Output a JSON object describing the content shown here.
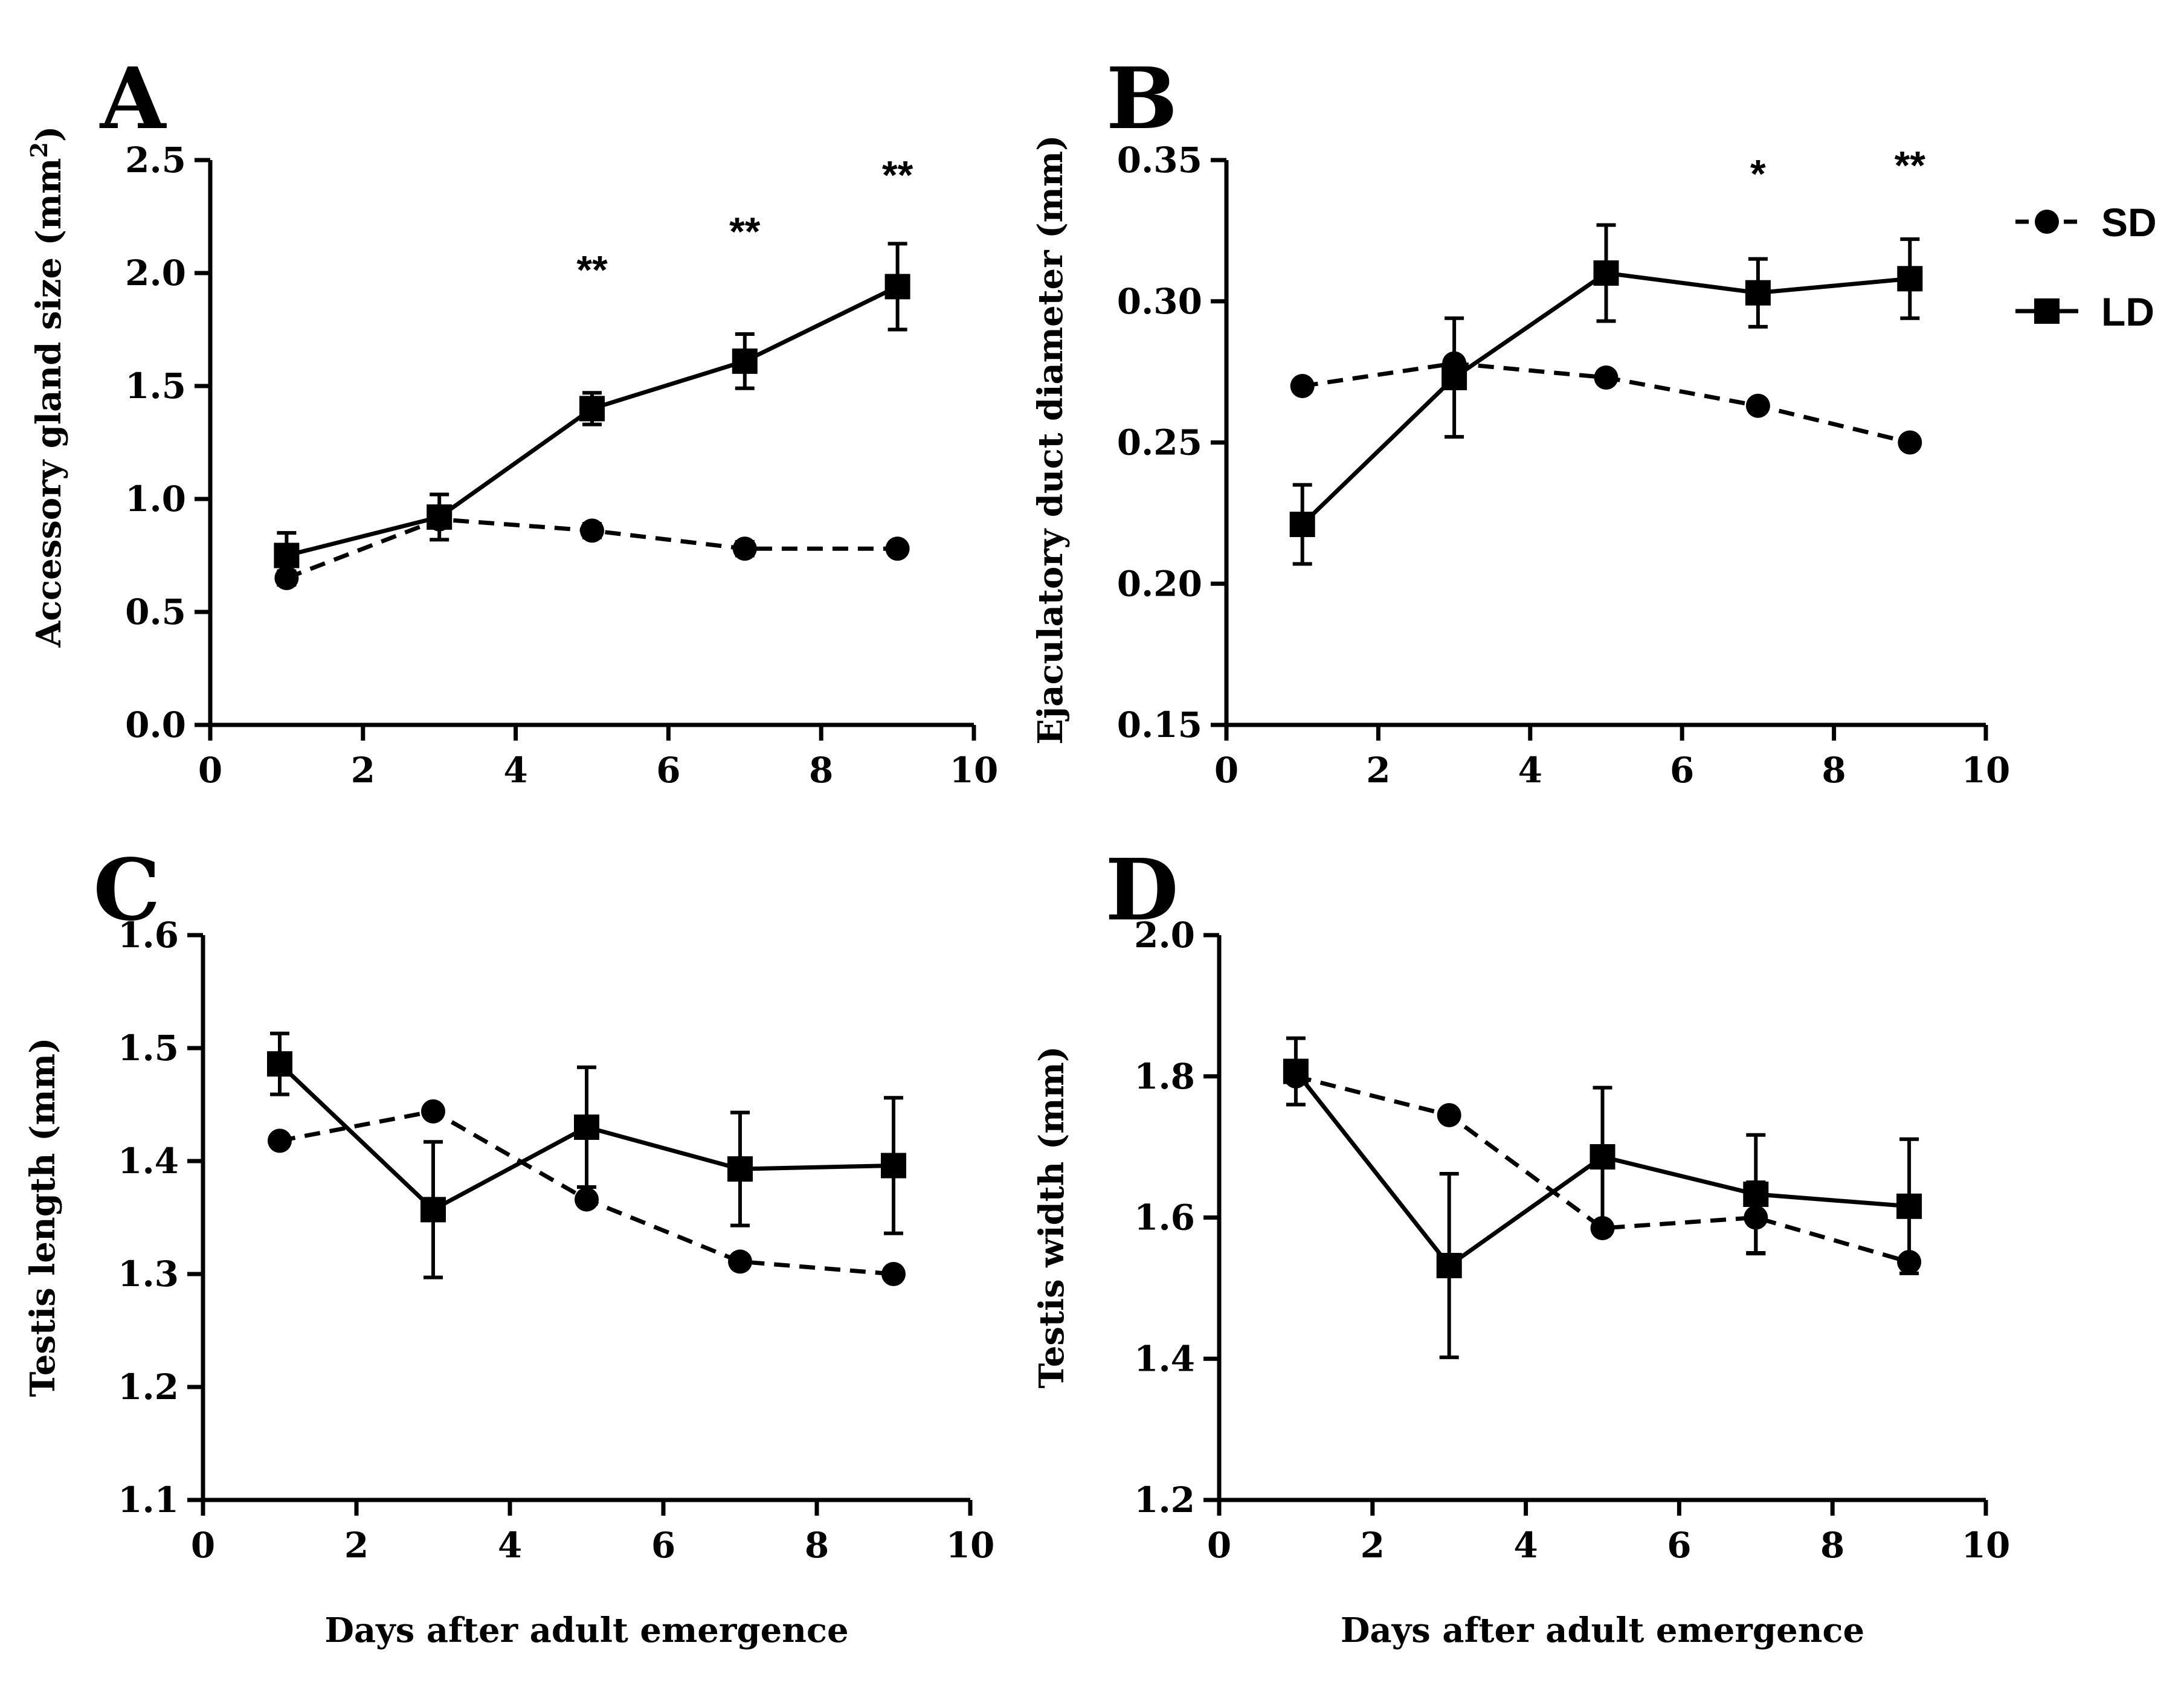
{
  "legend": {
    "items": [
      {
        "label": "SD",
        "marker": "circle",
        "dash": "dashed"
      },
      {
        "label": "LD",
        "marker": "square",
        "dash": "solid"
      }
    ],
    "placement": "right of panel B"
  },
  "x_axis_title": "Days after adult emergence",
  "chart_data": [
    {
      "panel": "A",
      "type": "line",
      "x": [
        1,
        3,
        5,
        7,
        9
      ],
      "xlim": [
        0,
        10
      ],
      "xticks": [
        "0",
        "2",
        "4",
        "6",
        "8",
        "10"
      ],
      "ylim": [
        0,
        2.5
      ],
      "yticks": [
        "0.0",
        "0.5",
        "1.0",
        "1.5",
        "2.0",
        "2.5"
      ],
      "ylabel": "Accessory gland size (mm",
      "ylabel_sup": "2",
      "ylabel_suffix": ")",
      "xlabel": "",
      "series": [
        {
          "name": "SD",
          "values": [
            0.65,
            0.91,
            0.86,
            0.78,
            0.78
          ],
          "err": [
            0.03,
            0.03,
            0.03,
            0.03,
            0.02
          ]
        },
        {
          "name": "LD",
          "values": [
            0.75,
            0.92,
            1.4,
            1.61,
            1.94
          ],
          "err": [
            0.1,
            0.1,
            0.07,
            0.12,
            0.19
          ]
        }
      ],
      "annotations": [
        {
          "x": 5,
          "text": "**",
          "value": 2.0
        },
        {
          "x": 7,
          "text": "**",
          "value": 2.17
        },
        {
          "x": 9,
          "text": "**",
          "value": 2.42
        }
      ]
    },
    {
      "panel": "B",
      "type": "line",
      "x": [
        1,
        3,
        5,
        7,
        9
      ],
      "xlim": [
        0,
        10
      ],
      "xticks": [
        "0",
        "2",
        "4",
        "6",
        "8",
        "10"
      ],
      "ylim": [
        0.15,
        0.35
      ],
      "yticks": [
        "0.15",
        "0.20",
        "0.25",
        "0.30",
        "0.35"
      ],
      "ylabel": "Ejaculatory duct diameter  (mm)",
      "xlabel": "",
      "series": [
        {
          "name": "SD",
          "values": [
            0.27,
            0.278,
            0.273,
            0.263,
            0.25
          ],
          "err": [
            0.002,
            0.002,
            0.002,
            0.002,
            0.002
          ]
        },
        {
          "name": "LD",
          "values": [
            0.221,
            0.273,
            0.31,
            0.303,
            0.308
          ],
          "err": [
            0.014,
            0.021,
            0.017,
            0.012,
            0.014
          ]
        }
      ],
      "annotations": [
        {
          "x": 7,
          "text": "*",
          "value": 0.344
        },
        {
          "x": 9,
          "text": "**",
          "value": 0.347
        }
      ]
    },
    {
      "panel": "C",
      "type": "line",
      "x": [
        1,
        3,
        5,
        7,
        9
      ],
      "xlim": [
        0,
        10
      ],
      "xticks": [
        "0",
        "2",
        "4",
        "6",
        "8",
        "10"
      ],
      "ylim": [
        1.1,
        1.6
      ],
      "yticks": [
        "1.1",
        "1.2",
        "1.3",
        "1.4",
        "1.5",
        "1.6"
      ],
      "ylabel": "Testis length (mm)",
      "xlabel": "Days after adult emergence",
      "series": [
        {
          "name": "SD",
          "values": [
            1.418,
            1.444,
            1.366,
            1.311,
            1.3
          ],
          "err": [
            0.004,
            0.004,
            0.004,
            0.004,
            0.004
          ]
        },
        {
          "name": "LD",
          "values": [
            1.486,
            1.357,
            1.43,
            1.393,
            1.396
          ],
          "err": [
            0.027,
            0.06,
            0.053,
            0.05,
            0.06
          ]
        }
      ],
      "annotations": []
    },
    {
      "panel": "D",
      "type": "line",
      "x": [
        1,
        3,
        5,
        7,
        9
      ],
      "xlim": [
        0,
        10
      ],
      "xticks": [
        "0",
        "2",
        "4",
        "6",
        "8",
        "10"
      ],
      "ylim": [
        1.2,
        2.0
      ],
      "yticks": [
        "1.2",
        "1.4",
        "1.6",
        "1.8",
        "2.0"
      ],
      "ylabel": "Testis width (mm)",
      "xlabel": "Days after adult emergence",
      "series": [
        {
          "name": "SD",
          "values": [
            1.8,
            1.745,
            1.585,
            1.6,
            1.537
          ],
          "err": [
            0.005,
            0.005,
            0.005,
            0.05,
            0.005
          ]
        },
        {
          "name": "LD",
          "values": [
            1.807,
            1.532,
            1.686,
            1.633,
            1.616
          ],
          "err": [
            0.047,
            0.13,
            0.098,
            0.084,
            0.095
          ]
        }
      ],
      "annotations": []
    }
  ]
}
